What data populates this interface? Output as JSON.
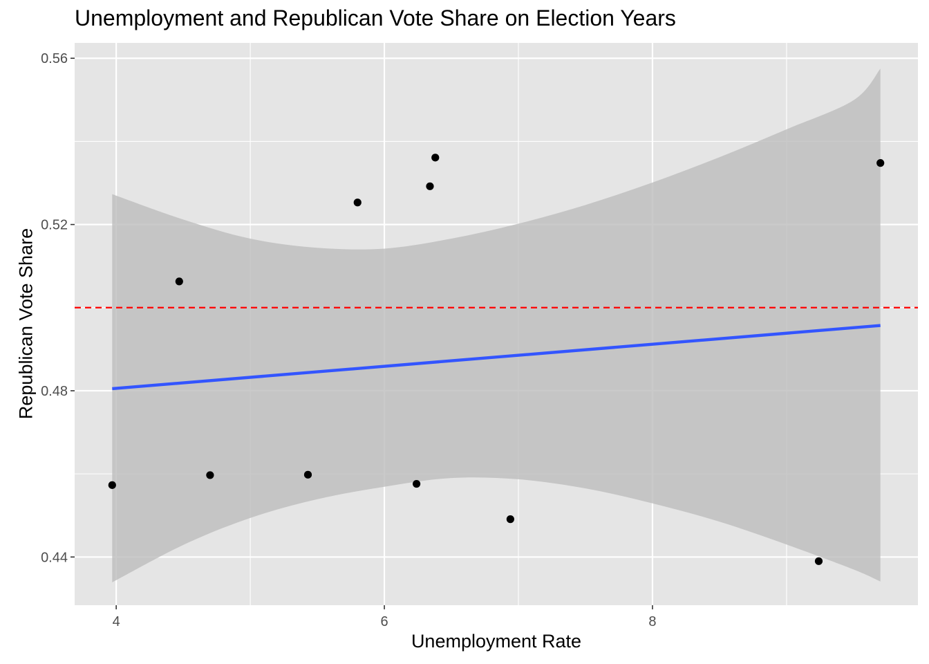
{
  "chart_data": {
    "type": "scatter",
    "title": "Unemployment and Republican Vote Share on Election Years",
    "xlabel": "Unemployment Rate",
    "ylabel": "Republican Vote Share",
    "xlim": [
      3.69,
      9.98
    ],
    "ylim": [
      0.4284,
      0.5637
    ],
    "x_ticks": [
      4,
      6,
      8
    ],
    "x_tick_labels": [
      "4",
      "6",
      "8"
    ],
    "y_ticks": [
      0.44,
      0.48,
      0.52,
      0.56
    ],
    "y_tick_labels": [
      "0.44",
      "0.48",
      "0.52",
      "0.56"
    ],
    "grid": true,
    "background_color": "#e5e5e5",
    "points": {
      "color": "#000000",
      "x": [
        3.97,
        4.47,
        4.7,
        5.43,
        5.8,
        6.24,
        6.34,
        6.38,
        6.94,
        9.24,
        9.7
      ],
      "y": [
        0.4573,
        0.5063,
        0.4597,
        0.4598,
        0.5253,
        0.4576,
        0.5292,
        0.5361,
        0.4491,
        0.439,
        0.5348
      ]
    },
    "regression_line": {
      "color": "#3355ff",
      "x": [
        3.97,
        9.7
      ],
      "y": [
        0.4805,
        0.4957
      ]
    },
    "confidence_band": {
      "color": "#bdbdbd",
      "x": [
        3.97,
        4.5,
        5.0,
        5.5,
        6.0,
        6.5,
        7.0,
        7.5,
        8.0,
        8.5,
        9.0,
        9.5,
        9.7
      ],
      "upper": [
        0.5273,
        0.5212,
        0.5166,
        0.5144,
        0.5142,
        0.5166,
        0.5202,
        0.5247,
        0.5301,
        0.5362,
        0.5429,
        0.5499,
        0.5575
      ],
      "lower": [
        0.4339,
        0.4429,
        0.4494,
        0.4539,
        0.4569,
        0.459,
        0.4587,
        0.4565,
        0.4529,
        0.4485,
        0.443,
        0.437,
        0.4341
      ]
    },
    "reference_line": {
      "y": 0.5,
      "color": "#ff0000",
      "style": "dashed"
    }
  }
}
